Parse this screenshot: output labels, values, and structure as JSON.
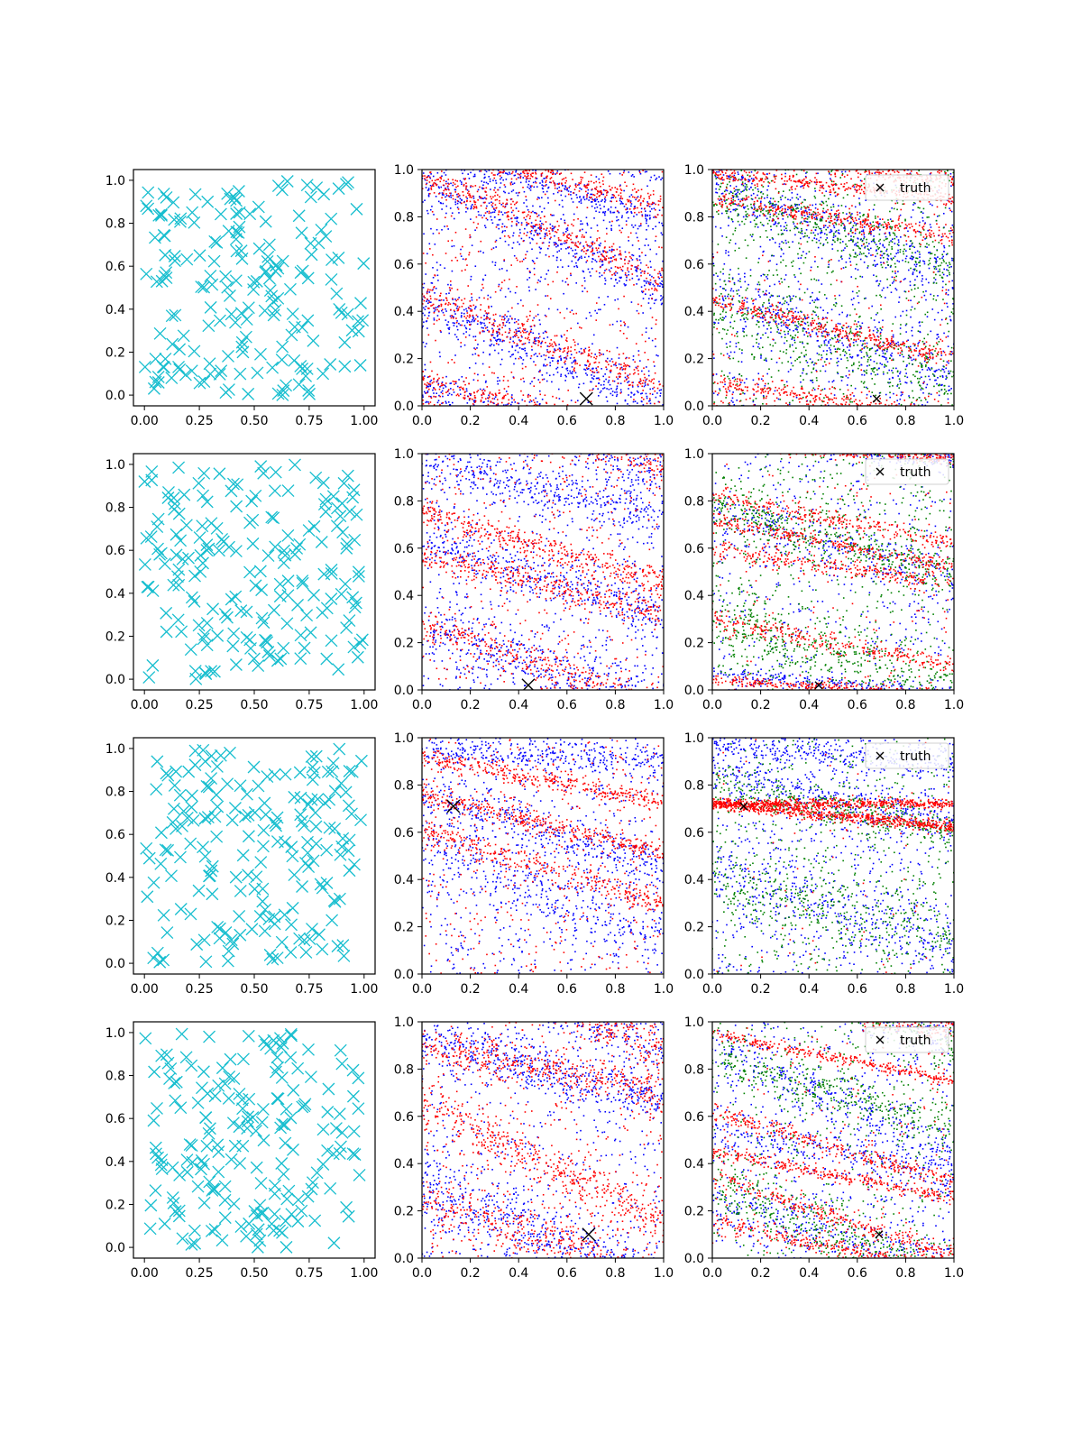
{
  "figure": {
    "background": "#ffffff",
    "colors": {
      "uniform": "#17becf",
      "red": "#ff0000",
      "blue": "#0000ff",
      "green": "#008000",
      "truth": "#000000"
    },
    "legend_label": "truth"
  },
  "chart_data": [
    {
      "row": 0,
      "col": 0,
      "type": "scatter",
      "marker": "x",
      "series": [
        {
          "color": "#17becf",
          "generator": "uniform",
          "n": 190,
          "seed": 11
        }
      ],
      "xlim": [
        -0.05,
        1.05
      ],
      "ylim": [
        -0.05,
        1.05
      ],
      "xticks": [
        0,
        0.25,
        0.5,
        0.75,
        1
      ],
      "xticklabels": [
        "0.00",
        "0.25",
        "0.50",
        "0.75",
        "1.00"
      ],
      "yticks": [
        0,
        0.2,
        0.4,
        0.6,
        0.8,
        1
      ],
      "yticklabels": [
        "0.0",
        "0.2",
        "0.4",
        "0.6",
        "0.8",
        "1.0"
      ]
    },
    {
      "row": 0,
      "col": 1,
      "type": "scatter",
      "marker": "dot",
      "series": [
        {
          "color": "#0000ff",
          "bands": [
            [
              0.95,
              -0.45,
              0.05
            ],
            [
              0.45,
              -0.45,
              0.05
            ],
            [
              0.08,
              -0.3,
              0.04
            ]
          ],
          "n": 1600,
          "noise": 0.3,
          "seed": 21
        },
        {
          "color": "#ff0000",
          "bands": [
            [
              0.98,
              -0.45,
              0.03
            ],
            [
              0.47,
              -0.4,
              0.035
            ],
            [
              0.1,
              -0.25,
              0.03
            ]
          ],
          "n": 1400,
          "noise": 0.25,
          "seed": 22
        }
      ],
      "truth": [
        0.68,
        0.03
      ],
      "truth_size": "large",
      "xlim": [
        0,
        1
      ],
      "ylim": [
        0,
        1
      ],
      "xticks": [
        0,
        0.2,
        0.4,
        0.6,
        0.8,
        1
      ],
      "xticklabels": [
        "0.0",
        "0.2",
        "0.4",
        "0.6",
        "0.8",
        "1.0"
      ],
      "yticks": [
        0,
        0.2,
        0.4,
        0.6,
        0.8,
        1
      ],
      "yticklabels": [
        "0.0",
        "0.2",
        "0.4",
        "0.6",
        "0.8",
        "1.0"
      ],
      "legend": false
    },
    {
      "row": 0,
      "col": 2,
      "type": "scatter",
      "marker": "dot",
      "series": [
        {
          "color": "#0000ff",
          "bands": [
            [
              0.95,
              -0.4,
              0.06
            ],
            [
              0.5,
              -0.4,
              0.07
            ]
          ],
          "n": 1300,
          "noise": 0.45,
          "seed": 31
        },
        {
          "color": "#008000",
          "bands": [
            [
              0.9,
              -0.3,
              0.06
            ],
            [
              0.4,
              -0.3,
              0.08
            ]
          ],
          "n": 1200,
          "noise": 0.45,
          "seed": 32
        },
        {
          "color": "#ff0000",
          "bands": [
            [
              0.1,
              -0.15,
              0.025
            ],
            [
              0.87,
              -0.15,
              0.02
            ],
            [
              0.45,
              -0.25,
              0.02
            ],
            [
              0.98,
              -0.1,
              0.02
            ]
          ],
          "n": 1500,
          "noise": 0.1,
          "seed": 33
        }
      ],
      "truth": [
        0.68,
        0.03
      ],
      "truth_size": "small",
      "xlim": [
        0,
        1
      ],
      "ylim": [
        0,
        1
      ],
      "xticks": [
        0,
        0.2,
        0.4,
        0.6,
        0.8,
        1
      ],
      "xticklabels": [
        "0.0",
        "0.2",
        "0.4",
        "0.6",
        "0.8",
        "1.0"
      ],
      "yticks": [
        0,
        0.2,
        0.4,
        0.6,
        0.8,
        1
      ],
      "yticklabels": [
        "0.0",
        "0.2",
        "0.4",
        "0.6",
        "0.8",
        "1.0"
      ],
      "legend": true
    },
    {
      "row": 1,
      "col": 0,
      "type": "scatter",
      "marker": "x",
      "series": [
        {
          "color": "#17becf",
          "generator": "uniform",
          "n": 190,
          "seed": 41
        }
      ],
      "xlim": [
        -0.05,
        1.05
      ],
      "ylim": [
        -0.05,
        1.05
      ],
      "xticks": [
        0,
        0.25,
        0.5,
        0.75,
        1
      ],
      "xticklabels": [
        "0.00",
        "0.25",
        "0.50",
        "0.75",
        "1.00"
      ],
      "yticks": [
        0,
        0.2,
        0.4,
        0.6,
        0.8,
        1
      ],
      "yticklabels": [
        "0.0",
        "0.2",
        "0.4",
        "0.6",
        "0.8",
        "1.0"
      ]
    },
    {
      "row": 1,
      "col": 1,
      "type": "scatter",
      "marker": "dot",
      "series": [
        {
          "color": "#0000ff",
          "bands": [
            [
              0.95,
              -0.2,
              0.05
            ],
            [
              0.62,
              -0.3,
              0.05
            ],
            [
              0.25,
              -0.3,
              0.06
            ]
          ],
          "n": 1600,
          "noise": 0.3,
          "seed": 51
        },
        {
          "color": "#ff0000",
          "bands": [
            [
              0.75,
              -0.3,
              0.03
            ],
            [
              0.57,
              -0.25,
              0.03
            ],
            [
              0.28,
              -0.35,
              0.04
            ]
          ],
          "n": 1400,
          "noise": 0.25,
          "seed": 52
        }
      ],
      "truth": [
        0.44,
        0.02
      ],
      "truth_size": "large",
      "xlim": [
        0,
        1
      ],
      "ylim": [
        0,
        1
      ],
      "xticks": [
        0,
        0.2,
        0.4,
        0.6,
        0.8,
        1
      ],
      "xticklabels": [
        "0.0",
        "0.2",
        "0.4",
        "0.6",
        "0.8",
        "1.0"
      ],
      "yticks": [
        0,
        0.2,
        0.4,
        0.6,
        0.8,
        1
      ],
      "yticklabels": [
        "0.0",
        "0.2",
        "0.4",
        "0.6",
        "0.8",
        "1.0"
      ],
      "legend": false
    },
    {
      "row": 1,
      "col": 2,
      "type": "scatter",
      "marker": "dot",
      "series": [
        {
          "color": "#0000ff",
          "bands": [
            [
              0.75,
              -0.3,
              0.05
            ],
            [
              0.07,
              -0.1,
              0.02
            ]
          ],
          "n": 900,
          "noise": 0.45,
          "seed": 61
        },
        {
          "color": "#008000",
          "bands": [
            [
              0.78,
              -0.3,
              0.05
            ],
            [
              0.3,
              -0.3,
              0.07
            ]
          ],
          "n": 1300,
          "noise": 0.4,
          "seed": 62
        },
        {
          "color": "#ff0000",
          "bands": [
            [
              0.04,
              -0.06,
              0.012
            ],
            [
              0.6,
              -0.15,
              0.02
            ],
            [
              0.3,
              -0.2,
              0.02
            ],
            [
              0.82,
              -0.2,
              0.02
            ],
            [
              0.72,
              -0.2,
              0.015
            ]
          ],
          "n": 1500,
          "noise": 0.1,
          "seed": 63
        }
      ],
      "truth": [
        0.44,
        0.02
      ],
      "truth_size": "small",
      "xlim": [
        0,
        1
      ],
      "ylim": [
        0,
        1
      ],
      "xticks": [
        0,
        0.2,
        0.4,
        0.6,
        0.8,
        1
      ],
      "xticklabels": [
        "0.0",
        "0.2",
        "0.4",
        "0.6",
        "0.8",
        "1.0"
      ],
      "yticks": [
        0,
        0.2,
        0.4,
        0.6,
        0.8,
        1
      ],
      "yticklabels": [
        "0.0",
        "0.2",
        "0.4",
        "0.6",
        "0.8",
        "1.0"
      ],
      "legend": true
    },
    {
      "row": 2,
      "col": 0,
      "type": "scatter",
      "marker": "x",
      "series": [
        {
          "color": "#17becf",
          "generator": "uniform",
          "n": 190,
          "seed": 71
        }
      ],
      "xlim": [
        -0.05,
        1.05
      ],
      "ylim": [
        -0.05,
        1.05
      ],
      "xticks": [
        0,
        0.25,
        0.5,
        0.75,
        1
      ],
      "xticklabels": [
        "0.00",
        "0.25",
        "0.50",
        "0.75",
        "1.00"
      ],
      "yticks": [
        0,
        0.2,
        0.4,
        0.6,
        0.8,
        1
      ],
      "yticklabels": [
        "0.0",
        "0.2",
        "0.4",
        "0.6",
        "0.8",
        "1.0"
      ]
    },
    {
      "row": 2,
      "col": 1,
      "type": "scatter",
      "marker": "dot",
      "series": [
        {
          "color": "#0000ff",
          "bands": [
            [
              0.75,
              -0.3,
              0.04
            ],
            [
              0.95,
              -0.05,
              0.04
            ],
            [
              0.55,
              -0.4,
              0.08
            ]
          ],
          "n": 1500,
          "noise": 0.35,
          "seed": 81
        },
        {
          "color": "#ff0000",
          "bands": [
            [
              0.76,
              -0.25,
              0.02
            ],
            [
              0.6,
              -0.3,
              0.03
            ],
            [
              0.92,
              -0.2,
              0.02
            ]
          ],
          "n": 1400,
          "noise": 0.25,
          "seed": 82
        }
      ],
      "truth": [
        0.13,
        0.71
      ],
      "truth_size": "large",
      "xlim": [
        0,
        1
      ],
      "ylim": [
        0,
        1
      ],
      "xticks": [
        0,
        0.2,
        0.4,
        0.6,
        0.8,
        1
      ],
      "xticklabels": [
        "0.0",
        "0.2",
        "0.4",
        "0.6",
        "0.8",
        "1.0"
      ],
      "yticks": [
        0,
        0.2,
        0.4,
        0.6,
        0.8,
        1
      ],
      "yticklabels": [
        "0.0",
        "0.2",
        "0.4",
        "0.6",
        "0.8",
        "1.0"
      ],
      "legend": false
    },
    {
      "row": 2,
      "col": 1,
      "_ignore": true
    },
    {
      "row": 2,
      "col": 2,
      "type": "scatter",
      "marker": "dot",
      "series": [
        {
          "color": "#0000ff",
          "bands": [
            [
              0.85,
              -0.2,
              0.05
            ],
            [
              0.45,
              -0.35,
              0.08
            ],
            [
              0.98,
              -0.1,
              0.03
            ]
          ],
          "n": 1500,
          "noise": 0.4,
          "seed": 91
        },
        {
          "color": "#008000",
          "bands": [
            [
              0.8,
              -0.2,
              0.04
            ],
            [
              0.4,
              -0.25,
              0.08
            ]
          ],
          "n": 1100,
          "noise": 0.45,
          "seed": 92
        },
        {
          "color": "#ff0000",
          "bands": [
            [
              0.72,
              -0.1,
              0.012
            ],
            [
              0.72,
              0.0,
              0.01
            ]
          ],
          "n": 1300,
          "noise": 0.05,
          "seed": 93
        }
      ],
      "truth": [
        0.13,
        0.71
      ],
      "truth_size": "small",
      "xlim": [
        0,
        1
      ],
      "ylim": [
        0,
        1
      ],
      "xticks": [
        0,
        0.2,
        0.4,
        0.6,
        0.8,
        1
      ],
      "xticklabels": [
        "0.0",
        "0.2",
        "0.4",
        "0.6",
        "0.8",
        "1.0"
      ],
      "yticks": [
        0,
        0.2,
        0.4,
        0.6,
        0.8,
        1
      ],
      "yticklabels": [
        "0.0",
        "0.2",
        "0.4",
        "0.6",
        "0.8",
        "1.0"
      ],
      "legend": true
    },
    {
      "row": 3,
      "col": 0,
      "type": "scatter",
      "marker": "x",
      "series": [
        {
          "color": "#17becf",
          "generator": "uniform",
          "n": 190,
          "seed": 101
        }
      ],
      "xlim": [
        -0.05,
        1.05
      ],
      "ylim": [
        -0.05,
        1.05
      ],
      "xticks": [
        0,
        0.25,
        0.5,
        0.75,
        1
      ],
      "xticklabels": [
        "0.00",
        "0.25",
        "0.50",
        "0.75",
        "1.00"
      ],
      "yticks": [
        0,
        0.2,
        0.4,
        0.6,
        0.8,
        1
      ],
      "yticklabels": [
        "0.0",
        "0.2",
        "0.4",
        "0.6",
        "0.8",
        "1.0"
      ]
    },
    {
      "row": 3,
      "col": 1,
      "type": "scatter",
      "marker": "dot",
      "series": [
        {
          "color": "#0000ff",
          "bands": [
            [
              0.92,
              -0.25,
              0.05
            ],
            [
              0.3,
              -0.4,
              0.07
            ]
          ],
          "n": 1400,
          "noise": 0.35,
          "seed": 111
        },
        {
          "color": "#ff0000",
          "bands": [
            [
              0.25,
              -0.35,
              0.05
            ],
            [
              0.65,
              -0.5,
              0.05
            ],
            [
              0.9,
              -0.2,
              0.04
            ]
          ],
          "n": 1600,
          "noise": 0.25,
          "seed": 112
        }
      ],
      "truth": [
        0.69,
        0.1
      ],
      "truth_size": "large",
      "xlim": [
        0,
        1
      ],
      "ylim": [
        0,
        1
      ],
      "xticks": [
        0,
        0.2,
        0.4,
        0.6,
        0.8,
        1
      ],
      "xticklabels": [
        "0.0",
        "0.2",
        "0.4",
        "0.6",
        "0.8",
        "1.0"
      ],
      "yticks": [
        0,
        0.2,
        0.4,
        0.6,
        0.8,
        1
      ],
      "yticklabels": [
        "0.0",
        "0.2",
        "0.4",
        "0.6",
        "0.8",
        "1.0"
      ],
      "legend": false
    },
    {
      "row": 3,
      "col": 2,
      "type": "scatter",
      "marker": "dot",
      "series": [
        {
          "color": "#0000ff",
          "bands": [
            [
              0.9,
              -0.45,
              0.05
            ],
            [
              0.55,
              -0.2,
              0.06
            ],
            [
              0.25,
              -0.3,
              0.06
            ]
          ],
          "n": 1300,
          "noise": 0.35,
          "seed": 121
        },
        {
          "color": "#008000",
          "bands": [
            [
              0.85,
              -0.3,
              0.05
            ],
            [
              0.3,
              -0.4,
              0.06
            ]
          ],
          "n": 1100,
          "noise": 0.35,
          "seed": 122
        },
        {
          "color": "#ff0000",
          "bands": [
            [
              0.95,
              -0.2,
              0.012
            ],
            [
              0.45,
              -0.2,
              0.015
            ],
            [
              0.35,
              -0.35,
              0.02
            ],
            [
              0.15,
              -0.2,
              0.02
            ],
            [
              0.62,
              -0.3,
              0.02
            ]
          ],
          "n": 1600,
          "noise": 0.1,
          "seed": 123
        }
      ],
      "truth": [
        0.69,
        0.1
      ],
      "truth_size": "small",
      "xlim": [
        0,
        1
      ],
      "ylim": [
        0,
        1
      ],
      "xticks": [
        0,
        0.2,
        0.4,
        0.6,
        0.8,
        1
      ],
      "xticklabels": [
        "0.0",
        "0.2",
        "0.4",
        "0.6",
        "0.8",
        "1.0"
      ],
      "yticks": [
        0,
        0.2,
        0.4,
        0.6,
        0.8,
        1
      ],
      "yticklabels": [
        "0.0",
        "0.2",
        "0.4",
        "0.6",
        "0.8",
        "1.0"
      ],
      "legend": true
    }
  ]
}
